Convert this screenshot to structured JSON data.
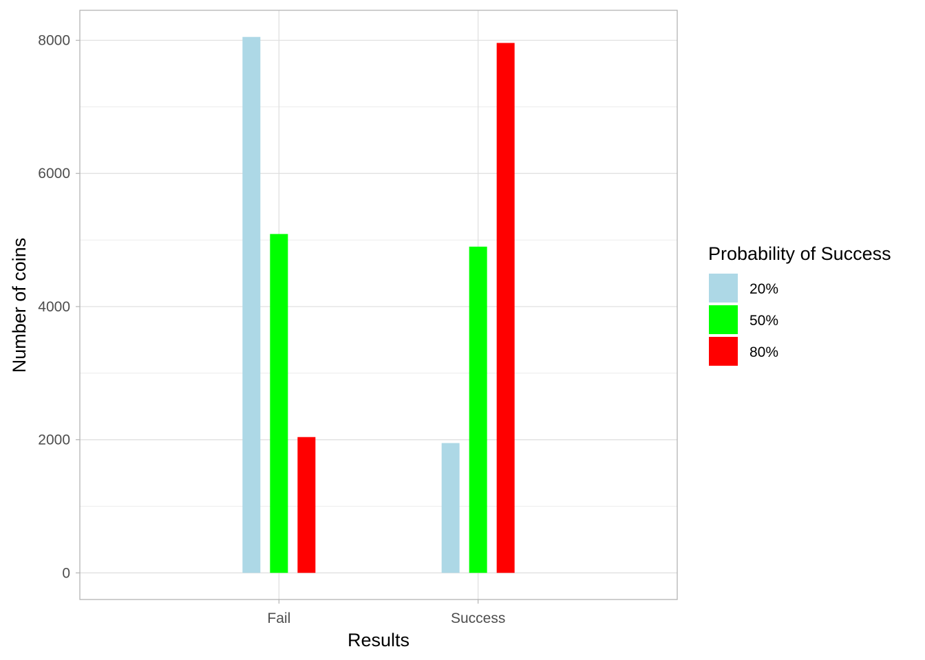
{
  "chart_data": {
    "type": "bar",
    "categories": [
      "Fail",
      "Success"
    ],
    "series": [
      {
        "name": "20%",
        "color": "#add8e6",
        "values": [
          8050,
          1950
        ]
      },
      {
        "name": "50%",
        "color": "#00ff00",
        "values": [
          5090,
          4900
        ]
      },
      {
        "name": "80%",
        "color": "#ff0000",
        "values": [
          2040,
          7960
        ]
      }
    ],
    "xlabel": "Results",
    "ylabel": "Number of coins",
    "legend_title": "Probability of Success",
    "legend_position": "right",
    "y_ticks": [
      "0",
      "2000",
      "4000",
      "6000",
      "8000"
    ],
    "y_tick_values": [
      0,
      2000,
      4000,
      6000,
      8000
    ],
    "ylim": [
      -400,
      8450
    ],
    "grid": true
  }
}
